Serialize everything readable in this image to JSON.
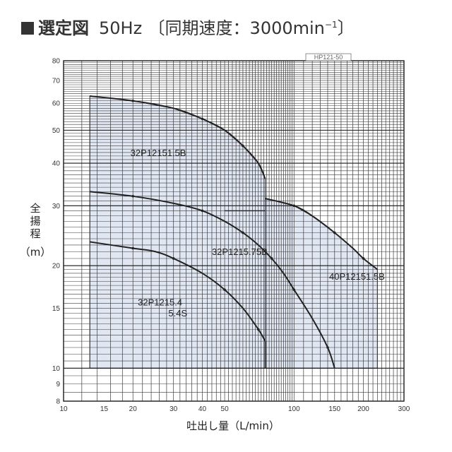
{
  "title": {
    "main": "選定図",
    "freq": "50Hz",
    "speed": "〔同期速度：3000min",
    "speed_sup": "−1",
    "speed_close": "〕"
  },
  "chart_tag": "HP121-50",
  "chart_data": {
    "type": "line",
    "xlabel": "吐出し量（L/min）",
    "ylabel_lines": [
      "全",
      "揚",
      "程",
      "（m）"
    ],
    "x_scale": "log",
    "y_scale": "log",
    "xlim": [
      10,
      300
    ],
    "ylim": [
      8,
      80
    ],
    "x_ticks": [
      10,
      15,
      20,
      30,
      40,
      50,
      100,
      150,
      200,
      300
    ],
    "y_ticks": [
      8,
      9,
      10,
      15,
      20,
      30,
      40,
      50,
      60,
      70,
      80
    ],
    "grid": true,
    "series": [
      {
        "name": "32P12151.5B",
        "color": "#222222",
        "fill": "#dce3f0",
        "points": [
          [
            13,
            63
          ],
          [
            20,
            61
          ],
          [
            30,
            58
          ],
          [
            40,
            54
          ],
          [
            50,
            50
          ],
          [
            60,
            45
          ],
          [
            70,
            40
          ],
          [
            75,
            36
          ]
        ],
        "region_bottom": 10,
        "region_step": [
          [
            75,
            29
          ],
          [
            50,
            29
          ]
        ]
      },
      {
        "name": "32P1215.75B",
        "color": "#222222",
        "points": [
          [
            13,
            33
          ],
          [
            20,
            32
          ],
          [
            30,
            30.5
          ],
          [
            40,
            29
          ],
          [
            50,
            27
          ],
          [
            60,
            25
          ],
          [
            70,
            23
          ],
          [
            80,
            21
          ],
          [
            90,
            19
          ],
          [
            100,
            17
          ],
          [
            120,
            14
          ],
          [
            140,
            11.5
          ],
          [
            150,
            10
          ]
        ]
      },
      {
        "name": "40P12151.5B",
        "color": "#222222",
        "fill": "#dce3f0",
        "points": [
          [
            75,
            31.5
          ],
          [
            100,
            30
          ],
          [
            120,
            28
          ],
          [
            150,
            25
          ],
          [
            180,
            22.5
          ],
          [
            200,
            21
          ],
          [
            230,
            19.5
          ]
        ],
        "region_bottom": 10,
        "region_right_x": 230
      },
      {
        "name": "32P1215.4\n5.4S",
        "color": "#222222",
        "points": [
          [
            13,
            23.5
          ],
          [
            20,
            22.5
          ],
          [
            25,
            22
          ],
          [
            30,
            21
          ],
          [
            40,
            19
          ],
          [
            50,
            17
          ],
          [
            60,
            15
          ],
          [
            70,
            13
          ],
          [
            75,
            12
          ]
        ]
      }
    ],
    "series_labels": [
      {
        "text": "32P12151.5B",
        "x": 19.5,
        "y": 42
      },
      {
        "text": "32P1215.75B",
        "x": 44,
        "y": 21.5
      },
      {
        "text": "40P12151.5B",
        "x": 142,
        "y": 18.2
      },
      {
        "text": "32P1215.4",
        "x": 21,
        "y": 15.3
      },
      {
        "text": "5.4S",
        "x": 28.5,
        "y": 14.2
      }
    ]
  }
}
